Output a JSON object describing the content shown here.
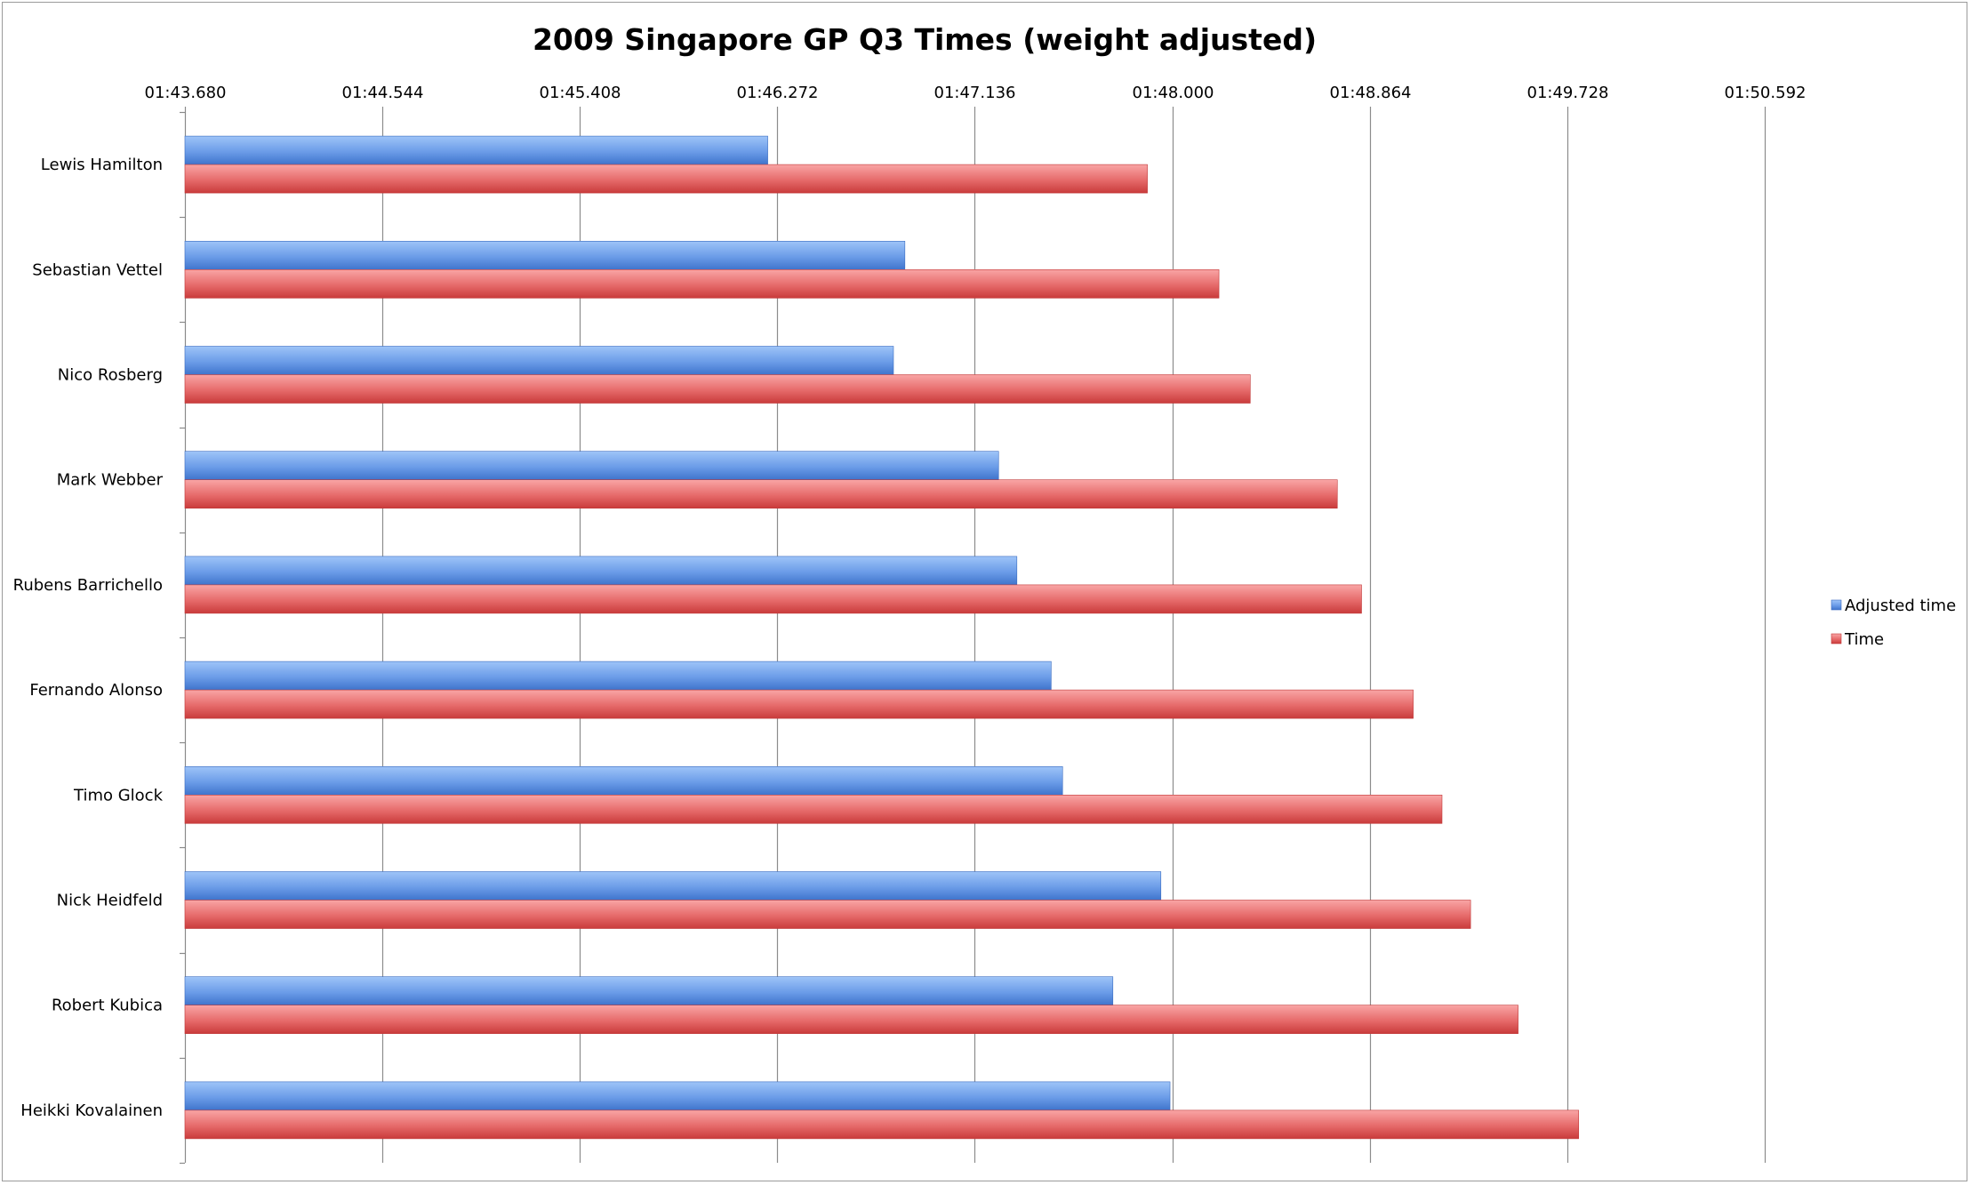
{
  "chart_data": {
    "type": "bar",
    "orientation": "horizontal",
    "title": "2009 Singapore GP Q3 Times (weight adjusted)",
    "xlabel": "",
    "ylabel": "",
    "x_axis_position": "top",
    "grid": true,
    "legend_position": "right",
    "xlim_seconds": [
      103.68,
      110.592
    ],
    "xticks_seconds": [
      103.68,
      104.544,
      105.408,
      106.272,
      107.136,
      108.0,
      108.864,
      109.728,
      110.592
    ],
    "xtick_labels": [
      "01:43.680",
      "01:44.544",
      "01:45.408",
      "01:46.272",
      "01:47.136",
      "01:48.000",
      "01:48.864",
      "01:49.728",
      "01:50.592"
    ],
    "categories": [
      "Lewis Hamilton",
      "Sebastian Vettel",
      "Nico Rosberg",
      "Mark Webber",
      "Rubens Barrichello",
      "Fernando Alonso",
      "Timo Glock",
      "Nick Heidfeld",
      "Robert Kubica",
      "Heikki Kovalainen"
    ],
    "series": [
      {
        "name": "Adjusted time",
        "color": "#5b8fde",
        "values_seconds": [
          106.23,
          106.83,
          106.78,
          107.24,
          107.32,
          107.47,
          107.52,
          107.95,
          107.74,
          107.99
        ]
      },
      {
        "name": "Time",
        "color": "#e05a5a",
        "values_seconds": [
          107.891,
          108.204,
          108.341,
          108.722,
          108.828,
          109.054,
          109.18,
          109.305,
          109.513,
          109.778
        ]
      }
    ]
  }
}
